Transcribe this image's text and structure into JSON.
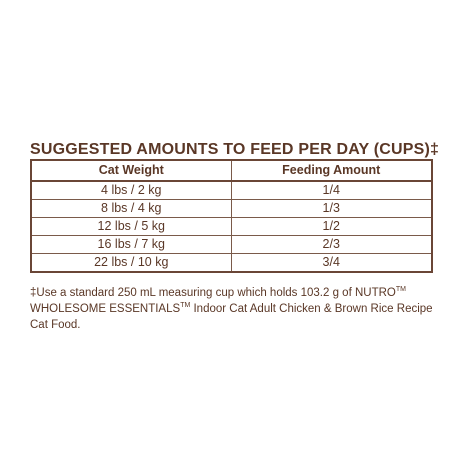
{
  "title": "SUGGESTED AMOUNTS TO FEED PER DAY (CUPS)‡",
  "table": {
    "headers": [
      "Cat Weight",
      "Feeding Amount"
    ],
    "rows": [
      [
        "4 lbs / 2 kg",
        "1/4"
      ],
      [
        "8 lbs / 4 kg",
        "1/3"
      ],
      [
        "12 lbs / 5 kg",
        "1/2"
      ],
      [
        "16 lbs / 7 kg",
        "2/3"
      ],
      [
        "22 lbs / 10 kg",
        "3/4"
      ]
    ]
  },
  "footnote": {
    "part1": "‡Use a standard 250 mL measuring cup which holds 103.2 g of NUTRO",
    "tm1": "TM",
    "part2": " WHOLESOME ESSENTIALS",
    "tm2": "TM",
    "part3": " Indoor Cat Adult Chicken & Brown Rice Recipe Cat Food."
  },
  "colors": {
    "text": "#5a3726",
    "border": "#6a4636",
    "background": "#ffffff"
  }
}
